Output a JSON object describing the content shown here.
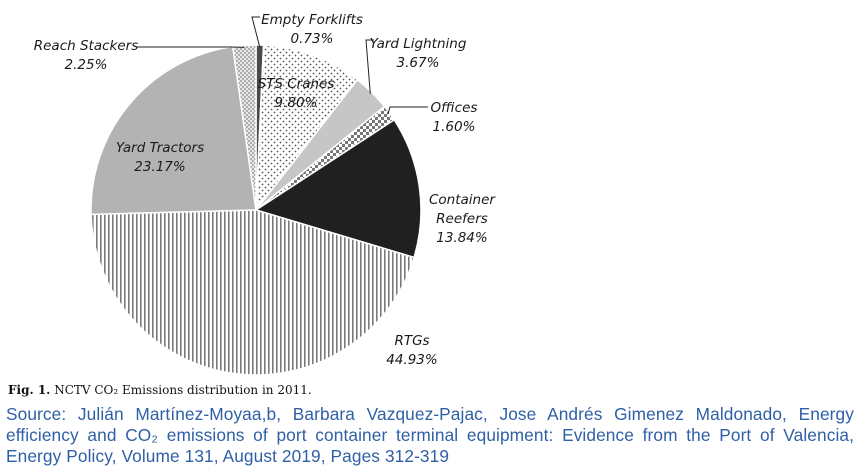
{
  "chart_data": {
    "type": "pie",
    "title": "",
    "slices": [
      {
        "label": "Empty Forklifts",
        "value": 0.73,
        "display": "0.73%",
        "fill": "#4a4a4a",
        "pattern": "solid-dark"
      },
      {
        "label": "STS Cranes",
        "value": 9.8,
        "display": "9.80%",
        "fill": "#ffffff",
        "pattern": "dots"
      },
      {
        "label": "Yard Lightning",
        "value": 3.67,
        "display": "3.67%",
        "fill": "#c6c6c6",
        "pattern": "solid-light"
      },
      {
        "label": "Offices",
        "value": 1.6,
        "display": "1.60%",
        "fill": "#ffffff",
        "pattern": "checker"
      },
      {
        "label": "Container Reefers",
        "value": 13.84,
        "display": "13.84%",
        "fill": "#202020",
        "pattern": "solid-black"
      },
      {
        "label": "RTGs",
        "value": 44.93,
        "display": "44.93%",
        "fill": "#ffffff",
        "pattern": "vertical-stripes"
      },
      {
        "label": "Yard Tractors",
        "value": 23.17,
        "display": "23.17%",
        "fill": "#b3b3b3",
        "pattern": "solid-grey"
      },
      {
        "label": "Reach Stackers",
        "value": 2.25,
        "display": "2.25%",
        "fill": "#ffffff",
        "pattern": "fine-dots"
      }
    ],
    "legend": "none",
    "start_angle": "12-o-clock",
    "direction": "clockwise"
  },
  "caption": {
    "fig": "Fig. 1.",
    "text": "NCTV CO₂ Emissions distribution in 2011."
  },
  "source": {
    "text": "Source: Julián Martínez-Moyaa,b, Barbara Vazquez-Pajac, Jose Andrés Gimenez Maldonado, Energy efficiency and CO₂ emissions of port container terminal equipment: Evidence from the Port of Valencia, Energy Policy, Volume 131, August 2019, Pages 312-319"
  }
}
